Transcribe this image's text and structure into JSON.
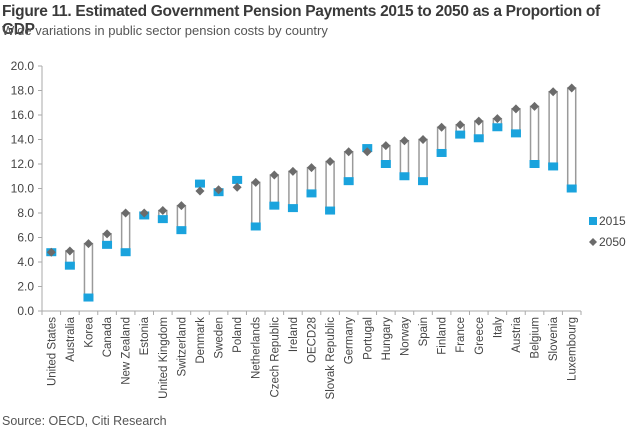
{
  "header": {
    "title": "Figure 11. Estimated Government Pension Payments 2015 to 2050 as a Proportion of GDP",
    "subtitle": "Wide variations in public sector pension costs by country"
  },
  "footer": {
    "source": "Source: OECD, Citi Research"
  },
  "colors": {
    "s2015": "#1aa3dd",
    "s2050": "#6b6b6b",
    "bar_outline": "#9a9a9a",
    "axis": "#aaaaaa"
  },
  "chart_data": {
    "type": "scatter",
    "title": "Figure 11. Estimated Government Pension Payments 2015 to 2050 as a Proportion of GDP",
    "subtitle": "Wide variations in public sector pension costs by country",
    "xlabel": "",
    "ylabel": "",
    "ylim": [
      0,
      20
    ],
    "yticks": [
      "0.0",
      "2.0",
      "4.0",
      "6.0",
      "8.0",
      "10.0",
      "12.0",
      "14.0",
      "16.0",
      "18.0",
      "20.0"
    ],
    "ytick_values": [
      0,
      2,
      4,
      6,
      8,
      10,
      12,
      14,
      16,
      18,
      20
    ],
    "grid": false,
    "legend_position": "right",
    "categories": [
      "United States",
      "Australia",
      "Korea",
      "Canada",
      "New Zealand",
      "Estonia",
      "United Kingdom",
      "Switzerland",
      "Denmark",
      "Sweden",
      "Poland",
      "Netherlands",
      "Czech Republic",
      "Ireland",
      "OECD28",
      "Slovak Republic",
      "Germany",
      "Portugal",
      "Hungary",
      "Norway",
      "Spain",
      "Finland",
      "France",
      "Greece",
      "Italy",
      "Austria",
      "Belgium",
      "Slovenia",
      "Luxembourg"
    ],
    "series": [
      {
        "name": "2015",
        "marker": "square",
        "values": [
          4.8,
          3.7,
          1.1,
          5.4,
          4.8,
          7.8,
          7.5,
          6.6,
          10.4,
          9.7,
          10.7,
          6.9,
          8.6,
          8.4,
          9.6,
          8.2,
          10.6,
          13.3,
          12.0,
          11.0,
          10.6,
          12.9,
          14.4,
          14.1,
          15.0,
          14.5,
          12.0,
          11.8,
          10.0
        ]
      },
      {
        "name": "2050",
        "marker": "diamond",
        "values": [
          4.8,
          4.9,
          5.5,
          6.3,
          8.0,
          8.0,
          8.2,
          8.6,
          9.8,
          9.9,
          10.1,
          10.5,
          11.1,
          11.4,
          11.7,
          12.2,
          13.0,
          13.0,
          13.5,
          13.9,
          14.0,
          15.0,
          15.2,
          15.5,
          15.7,
          16.5,
          16.7,
          17.9,
          18.2
        ]
      }
    ]
  }
}
